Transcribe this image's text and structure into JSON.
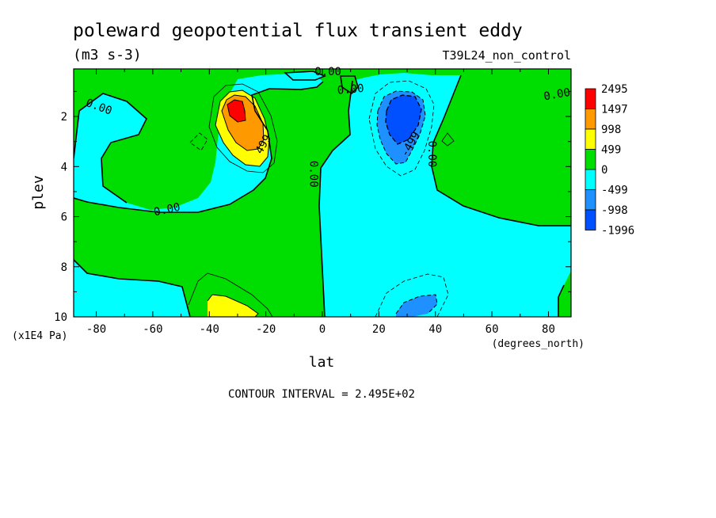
{
  "chart_data": {
    "type": "contour",
    "title": "poleward geopotential flux transient eddy",
    "units": "(m3 s-3)",
    "dataset": "T39L24_non_control",
    "xlabel": "lat",
    "xunits": "(degrees_north)",
    "ylabel": "plev",
    "yunits": "(x1E4 Pa)",
    "xlim": [
      -88,
      88
    ],
    "ylim": [
      10,
      0.1
    ],
    "xticks": [
      -80,
      -60,
      -40,
      -20,
      0,
      20,
      40,
      60,
      80
    ],
    "yticks": [
      2,
      4,
      6,
      8,
      10
    ],
    "contour_interval_text": "CONTOUR INTERVAL = 2.495E+02",
    "contour_interval": 249.5,
    "legend": {
      "levels": [
        "2495",
        "1497",
        "998",
        "499",
        "0",
        "-499",
        "-998",
        "-1996"
      ],
      "colors": [
        "#ff0000",
        "#ff9900",
        "#ffff00",
        "#00dd00",
        "#00ffff",
        "#1e90ff",
        "#0050ff"
      ]
    },
    "contour_labels": [
      {
        "text": "0.00",
        "lat": 2,
        "plev": 0.2
      },
      {
        "text": "0.00",
        "lat": -79,
        "plev": 1.6
      },
      {
        "text": "0.00",
        "lat": 10,
        "plev": 0.9
      },
      {
        "text": "0.00",
        "lat": 83,
        "plev": 1.1
      },
      {
        "text": "0.00",
        "lat": -55,
        "plev": 5.7
      },
      {
        "text": "0.00",
        "lat": -3,
        "plev": 4.3
      },
      {
        "text": "0.00",
        "lat": 39,
        "plev": 3.5
      },
      {
        "text": "499",
        "lat": -21,
        "plev": 3.1
      },
      {
        "text": "-499",
        "lat": 31,
        "plev": 3.1
      }
    ]
  }
}
